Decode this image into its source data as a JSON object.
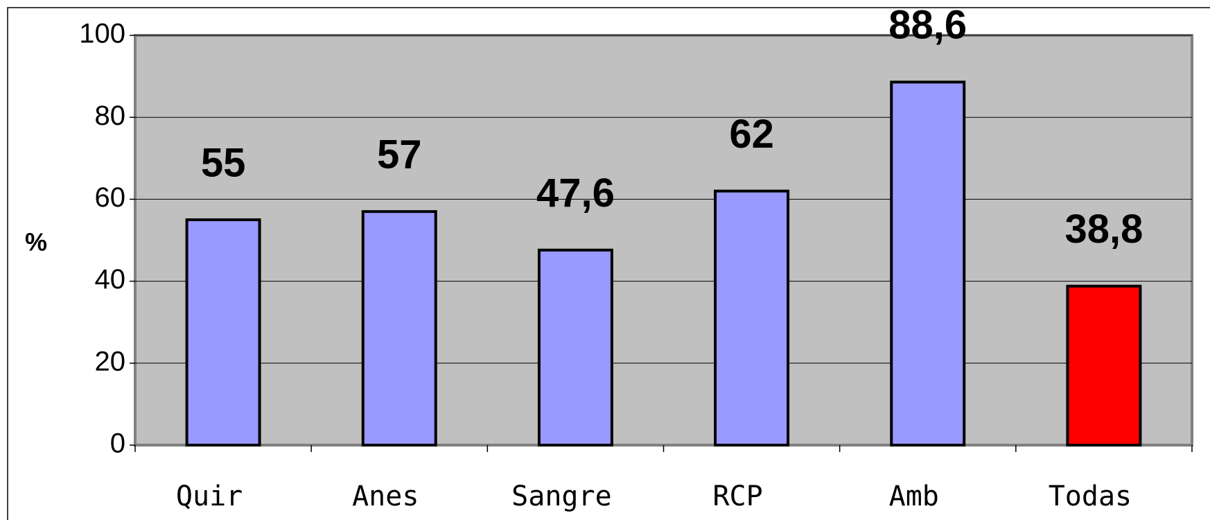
{
  "chart_data": {
    "type": "bar",
    "y_label": "%",
    "categories": [
      "Quir",
      "Anes",
      "Sangre",
      "RCP",
      "Amb",
      "Todas"
    ],
    "values": [
      55,
      57,
      47.6,
      62,
      88.6,
      38.8
    ],
    "value_labels": [
      "55",
      "57",
      "47,6",
      "62",
      "88,6",
      "38,8"
    ],
    "colors": [
      "#9999ff",
      "#9999ff",
      "#9999ff",
      "#9999ff",
      "#9999ff",
      "#ff0000"
    ],
    "ylim": [
      0,
      100
    ],
    "yticks": [
      0,
      20,
      40,
      60,
      80,
      100
    ],
    "grid": true,
    "plot_background": "#c0c0c0"
  }
}
